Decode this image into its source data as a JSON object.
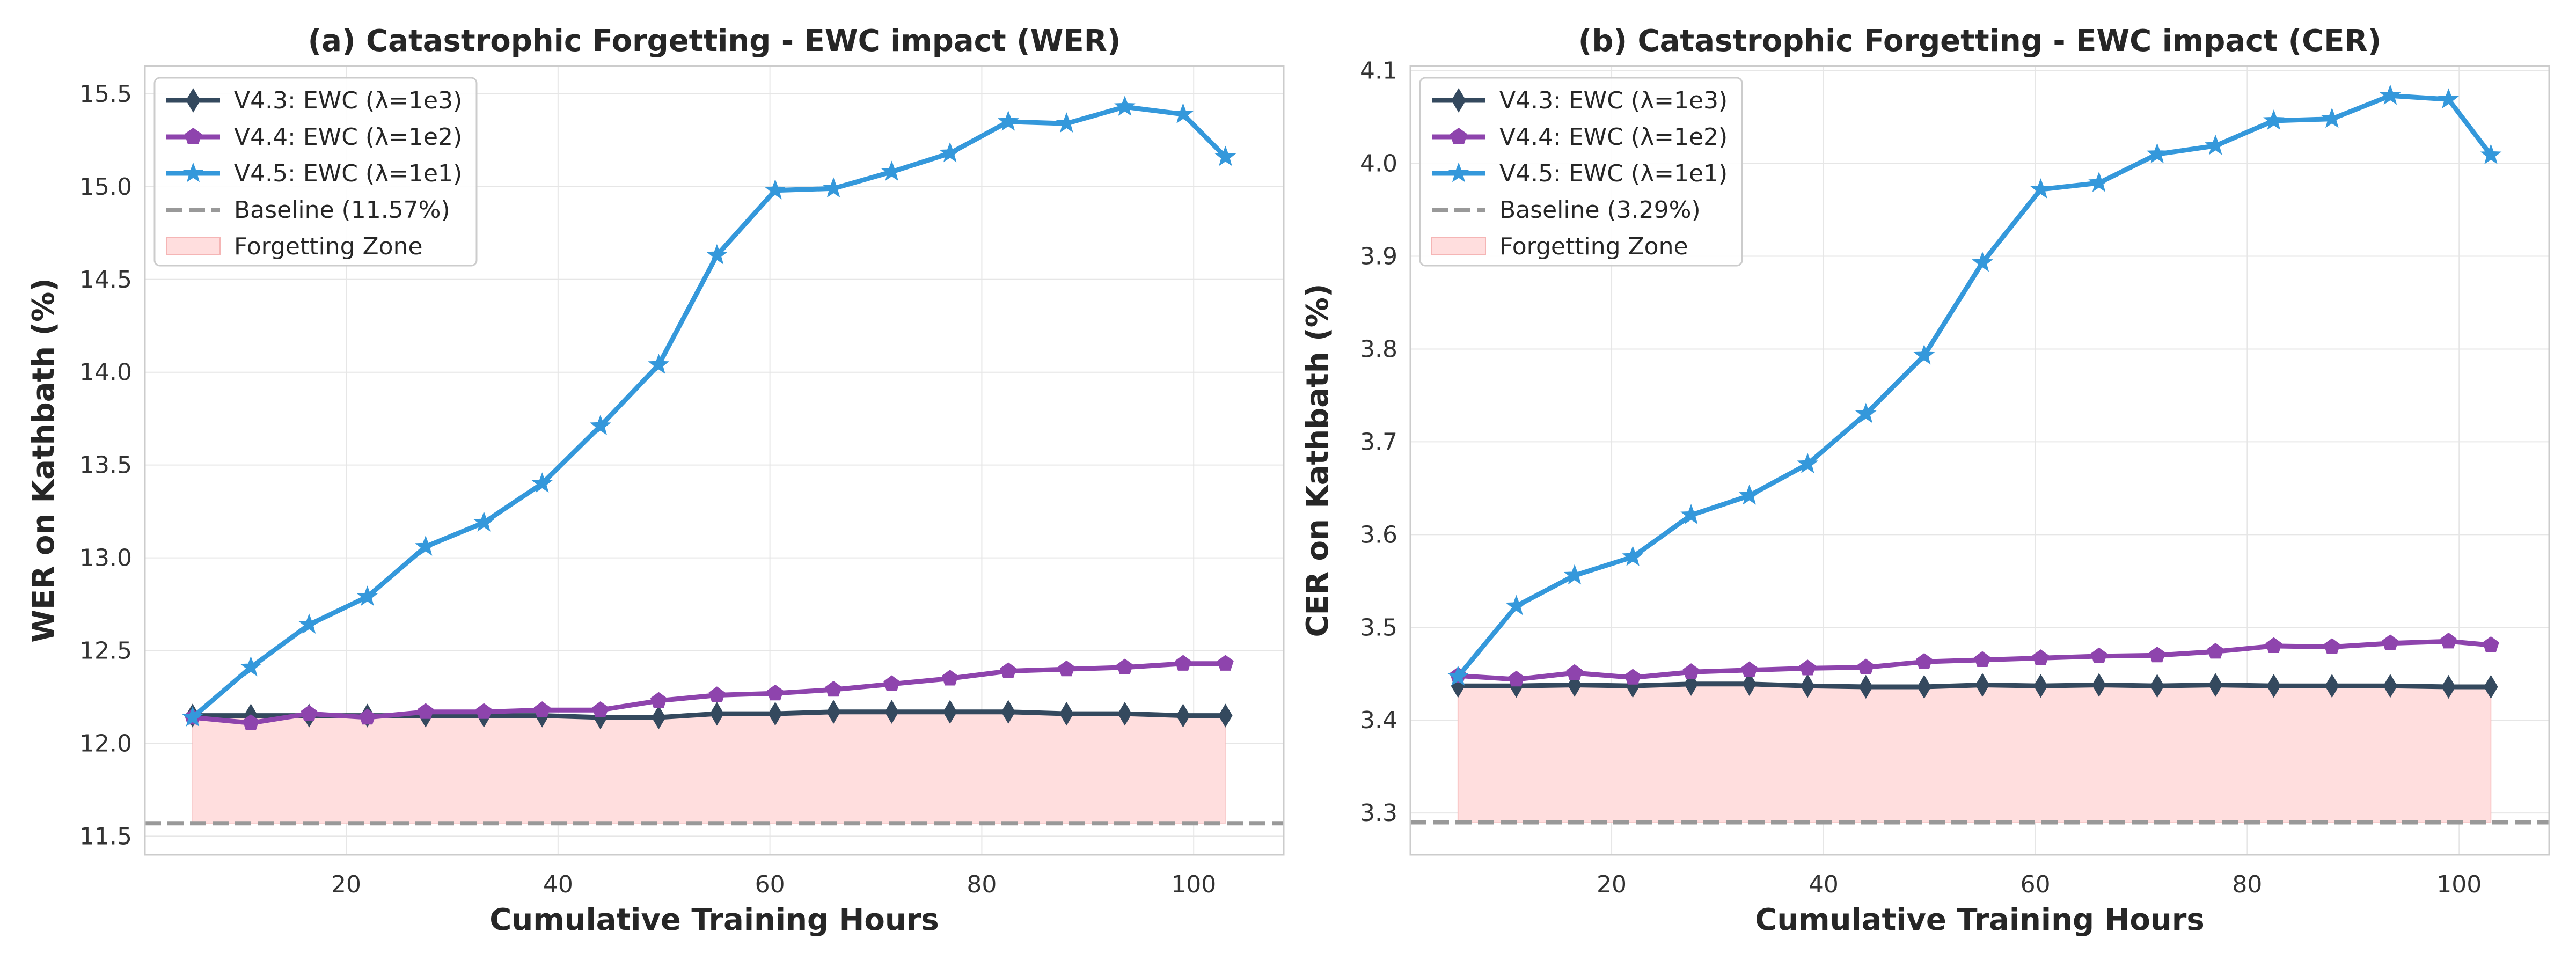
{
  "chart_data": [
    {
      "type": "line",
      "title": "(a) Catastrophic Forgetting - EWC impact (WER)",
      "xlabel": "Cumulative Training Hours",
      "ylabel": "WER on Kathbath (%)",
      "xlim": [
        1,
        108.5
      ],
      "ylim": [
        11.4,
        15.65
      ],
      "xticks": [
        20,
        40,
        60,
        80,
        100
      ],
      "xtick_labels": [
        "20",
        "40",
        "60",
        "80",
        "100"
      ],
      "yticks": [
        11.5,
        12.0,
        12.5,
        13.0,
        13.5,
        14.0,
        14.5,
        15.0,
        15.5
      ],
      "ytick_labels": [
        "11.5",
        "12.0",
        "12.5",
        "13.0",
        "13.5",
        "14.0",
        "14.5",
        "15.0",
        "15.5"
      ],
      "grid": true,
      "legend_position": "top-left",
      "x": [
        5.5,
        11,
        16.5,
        22,
        27.5,
        33,
        38.5,
        44,
        49.5,
        55,
        60.5,
        66,
        71.5,
        77,
        82.5,
        88,
        93.5,
        99,
        103
      ],
      "series": [
        {
          "name": "V4.3: EWC (λ=1e3)",
          "color": "#34495e",
          "marker": "diamond",
          "values": [
            12.15,
            12.15,
            12.15,
            12.15,
            12.15,
            12.15,
            12.15,
            12.14,
            12.14,
            12.16,
            12.16,
            12.17,
            12.17,
            12.17,
            12.17,
            12.16,
            12.16,
            12.15,
            12.15
          ]
        },
        {
          "name": "V4.4: EWC (λ=1e2)",
          "color": "#8e44ad",
          "marker": "pentagon",
          "values": [
            12.14,
            12.11,
            12.16,
            12.14,
            12.17,
            12.17,
            12.18,
            12.18,
            12.23,
            12.26,
            12.27,
            12.29,
            12.32,
            12.35,
            12.39,
            12.4,
            12.41,
            12.43,
            12.43
          ]
        },
        {
          "name": "V4.5: EWC (λ=1e1)",
          "color": "#3498db",
          "marker": "star",
          "values": [
            12.14,
            12.41,
            12.64,
            12.79,
            13.06,
            13.19,
            13.4,
            13.71,
            14.04,
            14.63,
            14.98,
            14.99,
            15.08,
            15.18,
            15.35,
            15.34,
            15.43,
            15.39,
            15.16
          ]
        }
      ],
      "baseline": {
        "name": "Baseline (11.57%)",
        "value": 11.57,
        "color": "#999999"
      },
      "forgetting_zone": {
        "name": "Forgetting Zone",
        "color": "#ffdede"
      }
    },
    {
      "type": "line",
      "title": "(b) Catastrophic Forgetting - EWC impact (CER)",
      "xlabel": "Cumulative Training Hours",
      "ylabel": "CER on Kathbath (%)",
      "xlim": [
        1,
        108.5
      ],
      "ylim": [
        3.255,
        4.105
      ],
      "xticks": [
        20,
        40,
        60,
        80,
        100
      ],
      "xtick_labels": [
        "20",
        "40",
        "60",
        "80",
        "100"
      ],
      "yticks": [
        3.3,
        3.4,
        3.5,
        3.6,
        3.7,
        3.8,
        3.9,
        4.0,
        4.1
      ],
      "ytick_labels": [
        "3.3",
        "3.4",
        "3.5",
        "3.6",
        "3.7",
        "3.8",
        "3.9",
        "4.0",
        "4.1"
      ],
      "grid": true,
      "legend_position": "top-left",
      "x": [
        5.5,
        11,
        16.5,
        22,
        27.5,
        33,
        38.5,
        44,
        49.5,
        55,
        60.5,
        66,
        71.5,
        77,
        82.5,
        88,
        93.5,
        99,
        103
      ],
      "series": [
        {
          "name": "V4.3: EWC (λ=1e3)",
          "color": "#34495e",
          "marker": "diamond",
          "values": [
            3.437,
            3.437,
            3.438,
            3.437,
            3.439,
            3.439,
            3.437,
            3.436,
            3.436,
            3.438,
            3.437,
            3.438,
            3.437,
            3.438,
            3.437,
            3.437,
            3.437,
            3.436,
            3.436
          ]
        },
        {
          "name": "V4.4: EWC (λ=1e2)",
          "color": "#8e44ad",
          "marker": "pentagon",
          "values": [
            3.448,
            3.444,
            3.451,
            3.446,
            3.452,
            3.454,
            3.456,
            3.457,
            3.463,
            3.465,
            3.467,
            3.469,
            3.47,
            3.474,
            3.48,
            3.479,
            3.483,
            3.485,
            3.481
          ]
        },
        {
          "name": "V4.5: EWC (λ=1e1)",
          "color": "#3498db",
          "marker": "star",
          "values": [
            3.447,
            3.523,
            3.556,
            3.576,
            3.621,
            3.642,
            3.676,
            3.73,
            3.793,
            3.893,
            3.972,
            3.979,
            4.01,
            4.019,
            4.046,
            4.048,
            4.073,
            4.069,
            4.009
          ]
        }
      ],
      "baseline": {
        "name": "Baseline (3.29%)",
        "value": 3.29,
        "color": "#999999"
      },
      "forgetting_zone": {
        "name": "Forgetting Zone",
        "color": "#ffdede"
      }
    }
  ]
}
